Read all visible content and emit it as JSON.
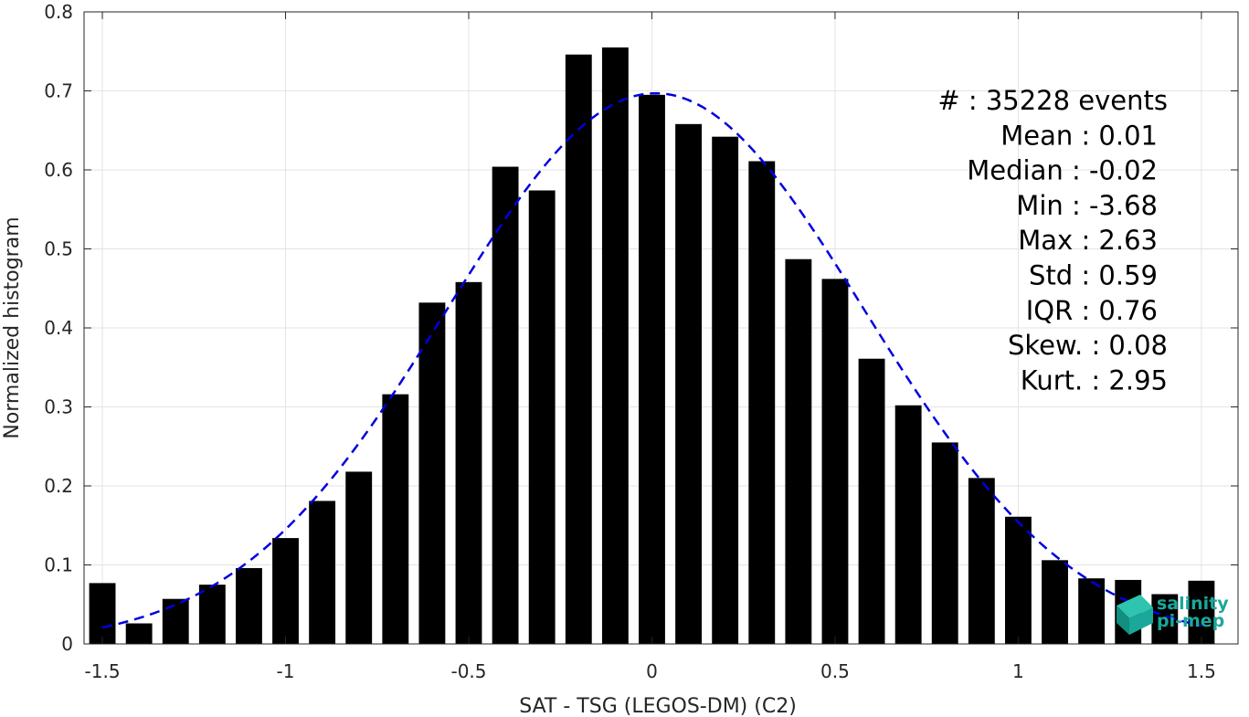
{
  "chart_data": {
    "type": "bar",
    "xlabel": "SAT - TSG (LEGOS-DM) (C2)",
    "ylabel": "Normalized histogram",
    "xlim": [
      -1.55,
      1.6
    ],
    "ylim": [
      0,
      0.8
    ],
    "xticks": [
      -1.5,
      -1,
      -0.5,
      0,
      0.5,
      1,
      1.5
    ],
    "xtick_labels": [
      "-1.5",
      "-1",
      "-0.5",
      "0",
      "0.5",
      "1",
      "1.5"
    ],
    "yticks": [
      0,
      0.1,
      0.2,
      0.3,
      0.4,
      0.5,
      0.6,
      0.7,
      0.8
    ],
    "ytick_labels": [
      "0",
      "0.1",
      "0.2",
      "0.3",
      "0.4",
      "0.5",
      "0.6",
      "0.7",
      "0.8"
    ],
    "grid": true,
    "bar_color": "#000000",
    "series": [
      {
        "x": [
          -1.5,
          -1.4,
          -1.3,
          -1.2,
          -1.1,
          -1.0,
          -0.9,
          -0.8,
          -0.7,
          -0.6,
          -0.5,
          -0.4,
          -0.3,
          -0.2,
          -0.1,
          0.0,
          0.1,
          0.2,
          0.3,
          0.4,
          0.5,
          0.6,
          0.7,
          0.8,
          0.9,
          1.0,
          1.1,
          1.2,
          1.3,
          1.4,
          1.5
        ],
        "values": [
          0.077,
          0.026,
          0.057,
          0.075,
          0.096,
          0.134,
          0.181,
          0.218,
          0.316,
          0.432,
          0.458,
          0.604,
          0.574,
          0.746,
          0.755,
          0.695,
          0.658,
          0.642,
          0.611,
          0.487,
          0.462,
          0.361,
          0.302,
          0.255,
          0.21,
          0.161,
          0.106,
          0.083,
          0.081,
          0.063,
          0.08
        ]
      }
    ],
    "fit_curve": {
      "style": "dashed",
      "color": "#0000e0",
      "mean": 0.01,
      "std": 0.57,
      "peak": 0.697,
      "x_range": [
        -1.5,
        1.5
      ]
    }
  },
  "stats": {
    "lines": [
      "#  : 35228 events",
      "Mean : 0.01",
      "Median : -0.02",
      "Min : -3.68",
      "Max : 2.63",
      "Std : 0.59",
      "IQR : 0.76",
      "Skew. : 0.08",
      "Kurt. : 2.95"
    ]
  },
  "logo": {
    "line1": "salinity",
    "line2": "pi-mep",
    "color": "#1aa89a"
  }
}
